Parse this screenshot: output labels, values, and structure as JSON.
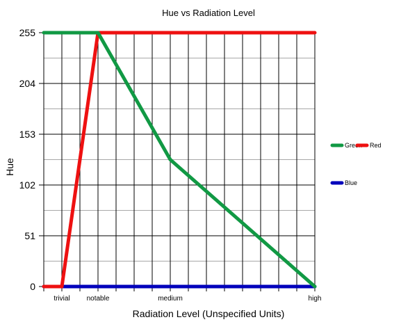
{
  "chart_data": {
    "type": "line",
    "title": "Hue vs Radiation Level",
    "xlabel": "Radiation Level (Unspecified Units)",
    "ylabel": "Hue",
    "xlim": [
      0,
      15
    ],
    "ylim": [
      0,
      255
    ],
    "yticks": [
      0,
      51,
      102,
      153,
      204,
      255
    ],
    "xtick_labels": [
      {
        "x": 1,
        "label": "trivial"
      },
      {
        "x": 3,
        "label": "notable"
      },
      {
        "x": 7,
        "label": "medium"
      },
      {
        "x": 15,
        "label": "high"
      }
    ],
    "grid": true,
    "legend_position": "right",
    "series": [
      {
        "name": "Green",
        "color": "#119944",
        "points": [
          [
            0,
            255
          ],
          [
            3,
            255
          ],
          [
            7,
            127.5
          ],
          [
            15,
            0
          ]
        ]
      },
      {
        "name": "Red",
        "color": "#ee1111",
        "points": [
          [
            0,
            0
          ],
          [
            1,
            0
          ],
          [
            3,
            255
          ],
          [
            15,
            255
          ]
        ]
      },
      {
        "name": "Blue",
        "color": "#0000bb",
        "points": [
          [
            0,
            0
          ],
          [
            15,
            0
          ]
        ]
      }
    ]
  }
}
